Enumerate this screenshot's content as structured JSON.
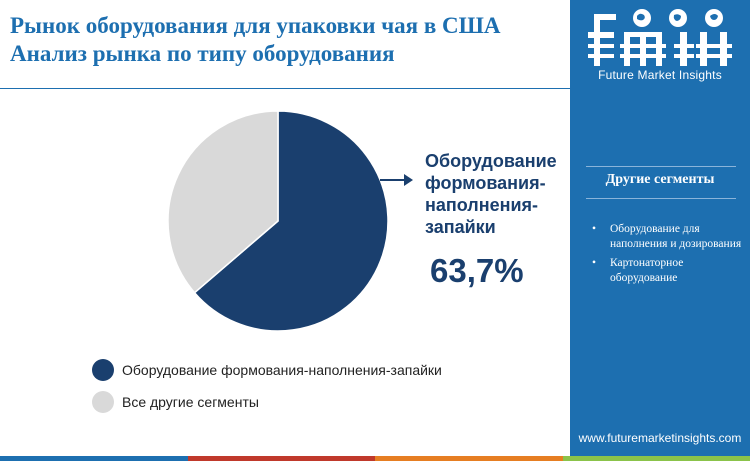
{
  "title": {
    "line1": "Рынок оборудования для упаковки чая в США",
    "line2": "Анализ рынка по типу оборудования"
  },
  "chart_data": {
    "type": "pie",
    "slices": [
      {
        "label": "Оборудование формования-наполнения-запайки",
        "value": 63.7,
        "color": "#1a3f6e"
      },
      {
        "label": "Все другие сегменты",
        "value": 36.3,
        "color": "#d9d9d9"
      }
    ],
    "highlight": {
      "label_lines": [
        "Оборудование",
        "формования-",
        "наполнения-",
        "запайки"
      ],
      "value_text": "63,7%"
    }
  },
  "legend": {
    "items": [
      {
        "label": "Оборудование формования-наполнения-запайки",
        "color": "#1a3f6e"
      },
      {
        "label": "Все другие сегменты",
        "color": "#d9d9d9"
      }
    ]
  },
  "sidebar": {
    "logo_text": "fmi",
    "logo_subtitle": "Future Market Insights",
    "heading": "Другие сегменты",
    "items": [
      "Оборудование для наполнения и дозирования",
      "Картонаторное оборудование"
    ],
    "website": "www.futuremarketinsights.com",
    "background": "#1d6fb0"
  },
  "bottom_bar_colors": [
    "#1d6fb0",
    "#c0392b",
    "#e67e22",
    "#8bc34a"
  ]
}
